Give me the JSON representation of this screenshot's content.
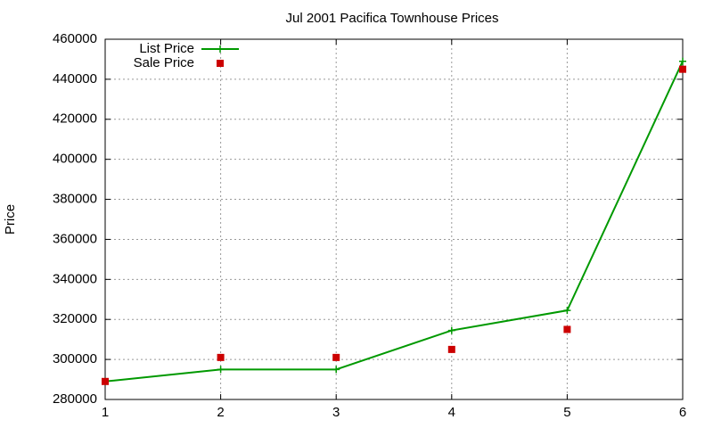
{
  "chart_data": {
    "type": "line",
    "title": "Jul 2001 Pacifica Townhouse Prices",
    "y_label": "Price",
    "x": [
      1,
      2,
      3,
      4,
      5,
      6
    ],
    "series": [
      {
        "name": "List Price",
        "color": "#009900",
        "style": "linespoints",
        "values": [
          289000,
          295000,
          295000,
          314500,
          324500,
          449000
        ]
      },
      {
        "name": "Sale Price",
        "color": "#cc0000",
        "style": "points",
        "values": [
          289000,
          301000,
          301000,
          305000,
          315000,
          445000
        ]
      }
    ],
    "xlim": [
      1,
      6
    ],
    "xticks": [
      1,
      2,
      3,
      4,
      5,
      6
    ],
    "ylim": [
      280000,
      460000
    ],
    "yticks": [
      280000,
      300000,
      320000,
      340000,
      360000,
      380000,
      400000,
      420000,
      440000,
      460000
    ],
    "grid": true,
    "legend": "top-left"
  }
}
